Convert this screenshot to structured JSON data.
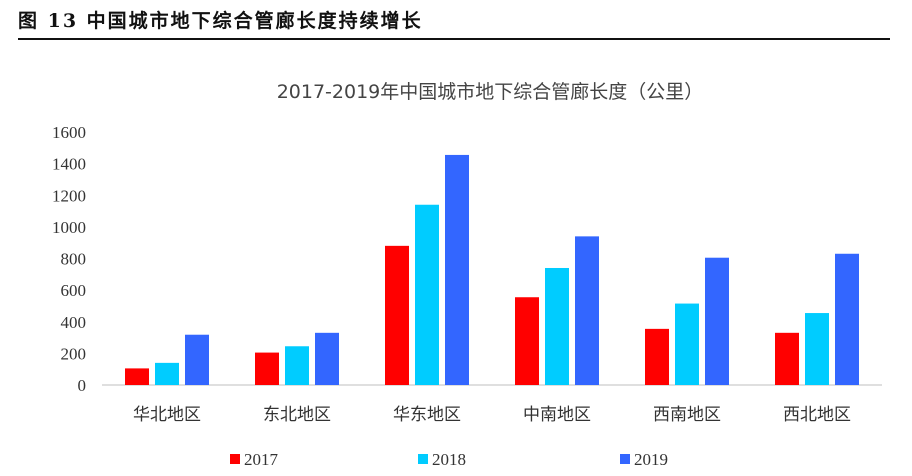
{
  "figure": {
    "title": "图 13  中国城市地下综合管廊长度持续增长"
  },
  "chart_data": {
    "type": "bar",
    "title": "2017-2019年中国城市地下综合管廊长度（公里）",
    "xlabel": "",
    "ylabel": "",
    "categories": [
      "华北地区",
      "东北地区",
      "华东地区",
      "中南地区",
      "西南地区",
      "西北地区"
    ],
    "series": [
      {
        "name": "2017",
        "color": "#ff0000",
        "values": [
          105,
          205,
          880,
          555,
          355,
          330
        ]
      },
      {
        "name": "2018",
        "color": "#00ccff",
        "values": [
          140,
          245,
          1140,
          740,
          515,
          455
        ]
      },
      {
        "name": "2019",
        "color": "#3366ff",
        "values": [
          318,
          330,
          1455,
          940,
          805,
          830
        ]
      }
    ],
    "ylim": [
      0,
      1600
    ],
    "yticks": [
      0,
      200,
      400,
      600,
      800,
      1000,
      1200,
      1400,
      1600
    ],
    "grid": false,
    "legend_position": "bottom"
  }
}
